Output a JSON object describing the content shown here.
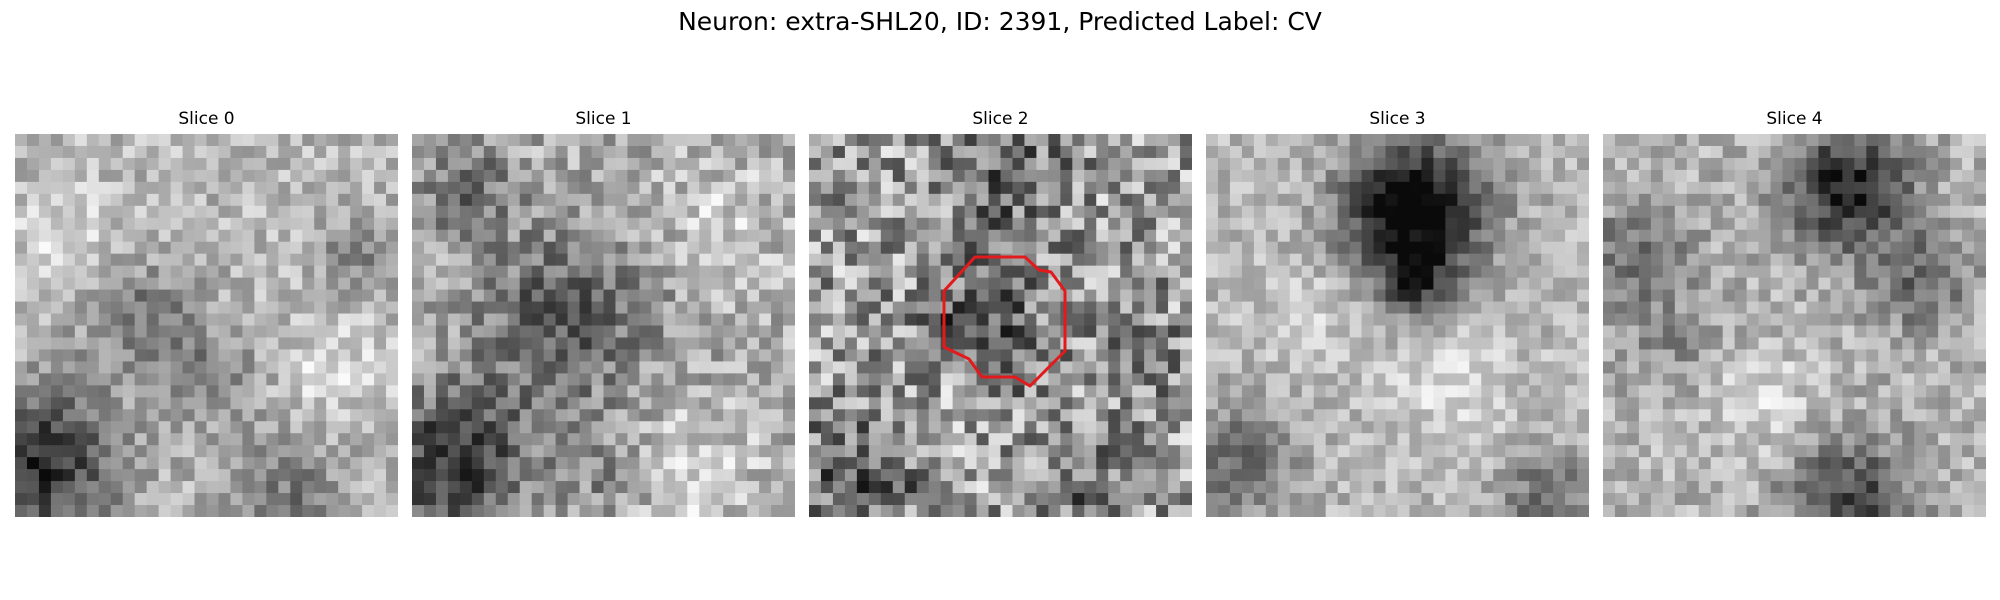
{
  "figure": {
    "title": "Neuron: extra-SHL20, ID: 2391, Predicted Label: CV"
  },
  "slices": [
    {
      "title": "Slice 0"
    },
    {
      "title": "Slice 1"
    },
    {
      "title": "Slice 2",
      "contour_color": "#e31a1c"
    },
    {
      "title": "Slice 3"
    },
    {
      "title": "Slice 4"
    }
  ]
}
